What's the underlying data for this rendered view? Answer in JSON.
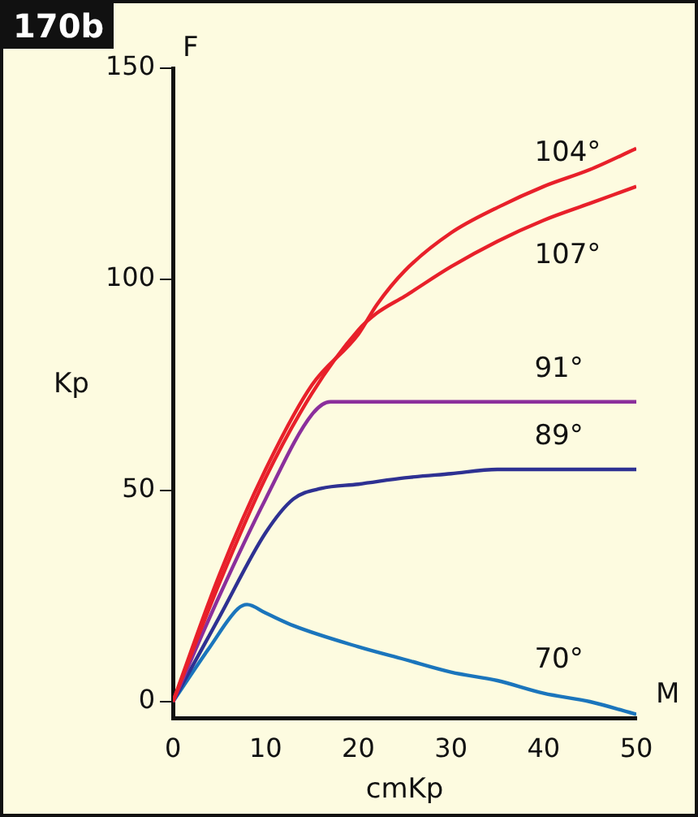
{
  "chart_data": {
    "type": "line",
    "xlabel": "cmKp",
    "ylabel": "Kp",
    "annotations": [
      "170b",
      "F",
      "M"
    ],
    "xlim": [
      0,
      50
    ],
    "xticks": [
      0,
      10,
      20,
      30,
      40,
      50
    ],
    "ylim": [
      -4,
      150
    ],
    "yticks": [
      0,
      50,
      100,
      150
    ],
    "grid": false,
    "legend": false,
    "marker": "none",
    "line_style": "solid",
    "series": [
      {
        "name": "104°",
        "color": "#e8202a",
        "x": [
          0,
          5,
          10,
          15,
          20,
          22,
          25,
          30,
          35,
          40,
          45,
          50
        ],
        "values": [
          0,
          30,
          55,
          75,
          87,
          94,
          102,
          111,
          117,
          122,
          126,
          131
        ]
      },
      {
        "name": "107°",
        "color": "#e8202a",
        "x": [
          0,
          5,
          10,
          15,
          20,
          22,
          25,
          30,
          35,
          40,
          45,
          50
        ],
        "values": [
          0,
          28,
          53,
          73,
          88,
          92,
          96,
          103,
          109,
          114,
          118,
          122
        ]
      },
      {
        "name": "91°",
        "color": "#8b2f9c",
        "x": [
          0,
          5,
          10,
          15,
          17,
          20,
          30,
          40,
          50
        ],
        "values": [
          0,
          25,
          48,
          68,
          71,
          71,
          71,
          71,
          71
        ]
      },
      {
        "name": "89°",
        "color": "#2e3192",
        "x": [
          0,
          5,
          10,
          13,
          16,
          20,
          25,
          30,
          35,
          40,
          50
        ],
        "values": [
          0,
          20,
          40,
          48,
          50.5,
          51.5,
          53,
          54,
          55,
          55,
          55
        ]
      },
      {
        "name": "70°",
        "color": "#1b75bc",
        "x": [
          0,
          4,
          7,
          8,
          10,
          13,
          20,
          25,
          30,
          35,
          40,
          45,
          50
        ],
        "values": [
          0,
          13,
          22,
          23,
          21,
          18,
          13,
          10,
          7,
          5,
          2,
          0,
          -3
        ]
      }
    ]
  }
}
